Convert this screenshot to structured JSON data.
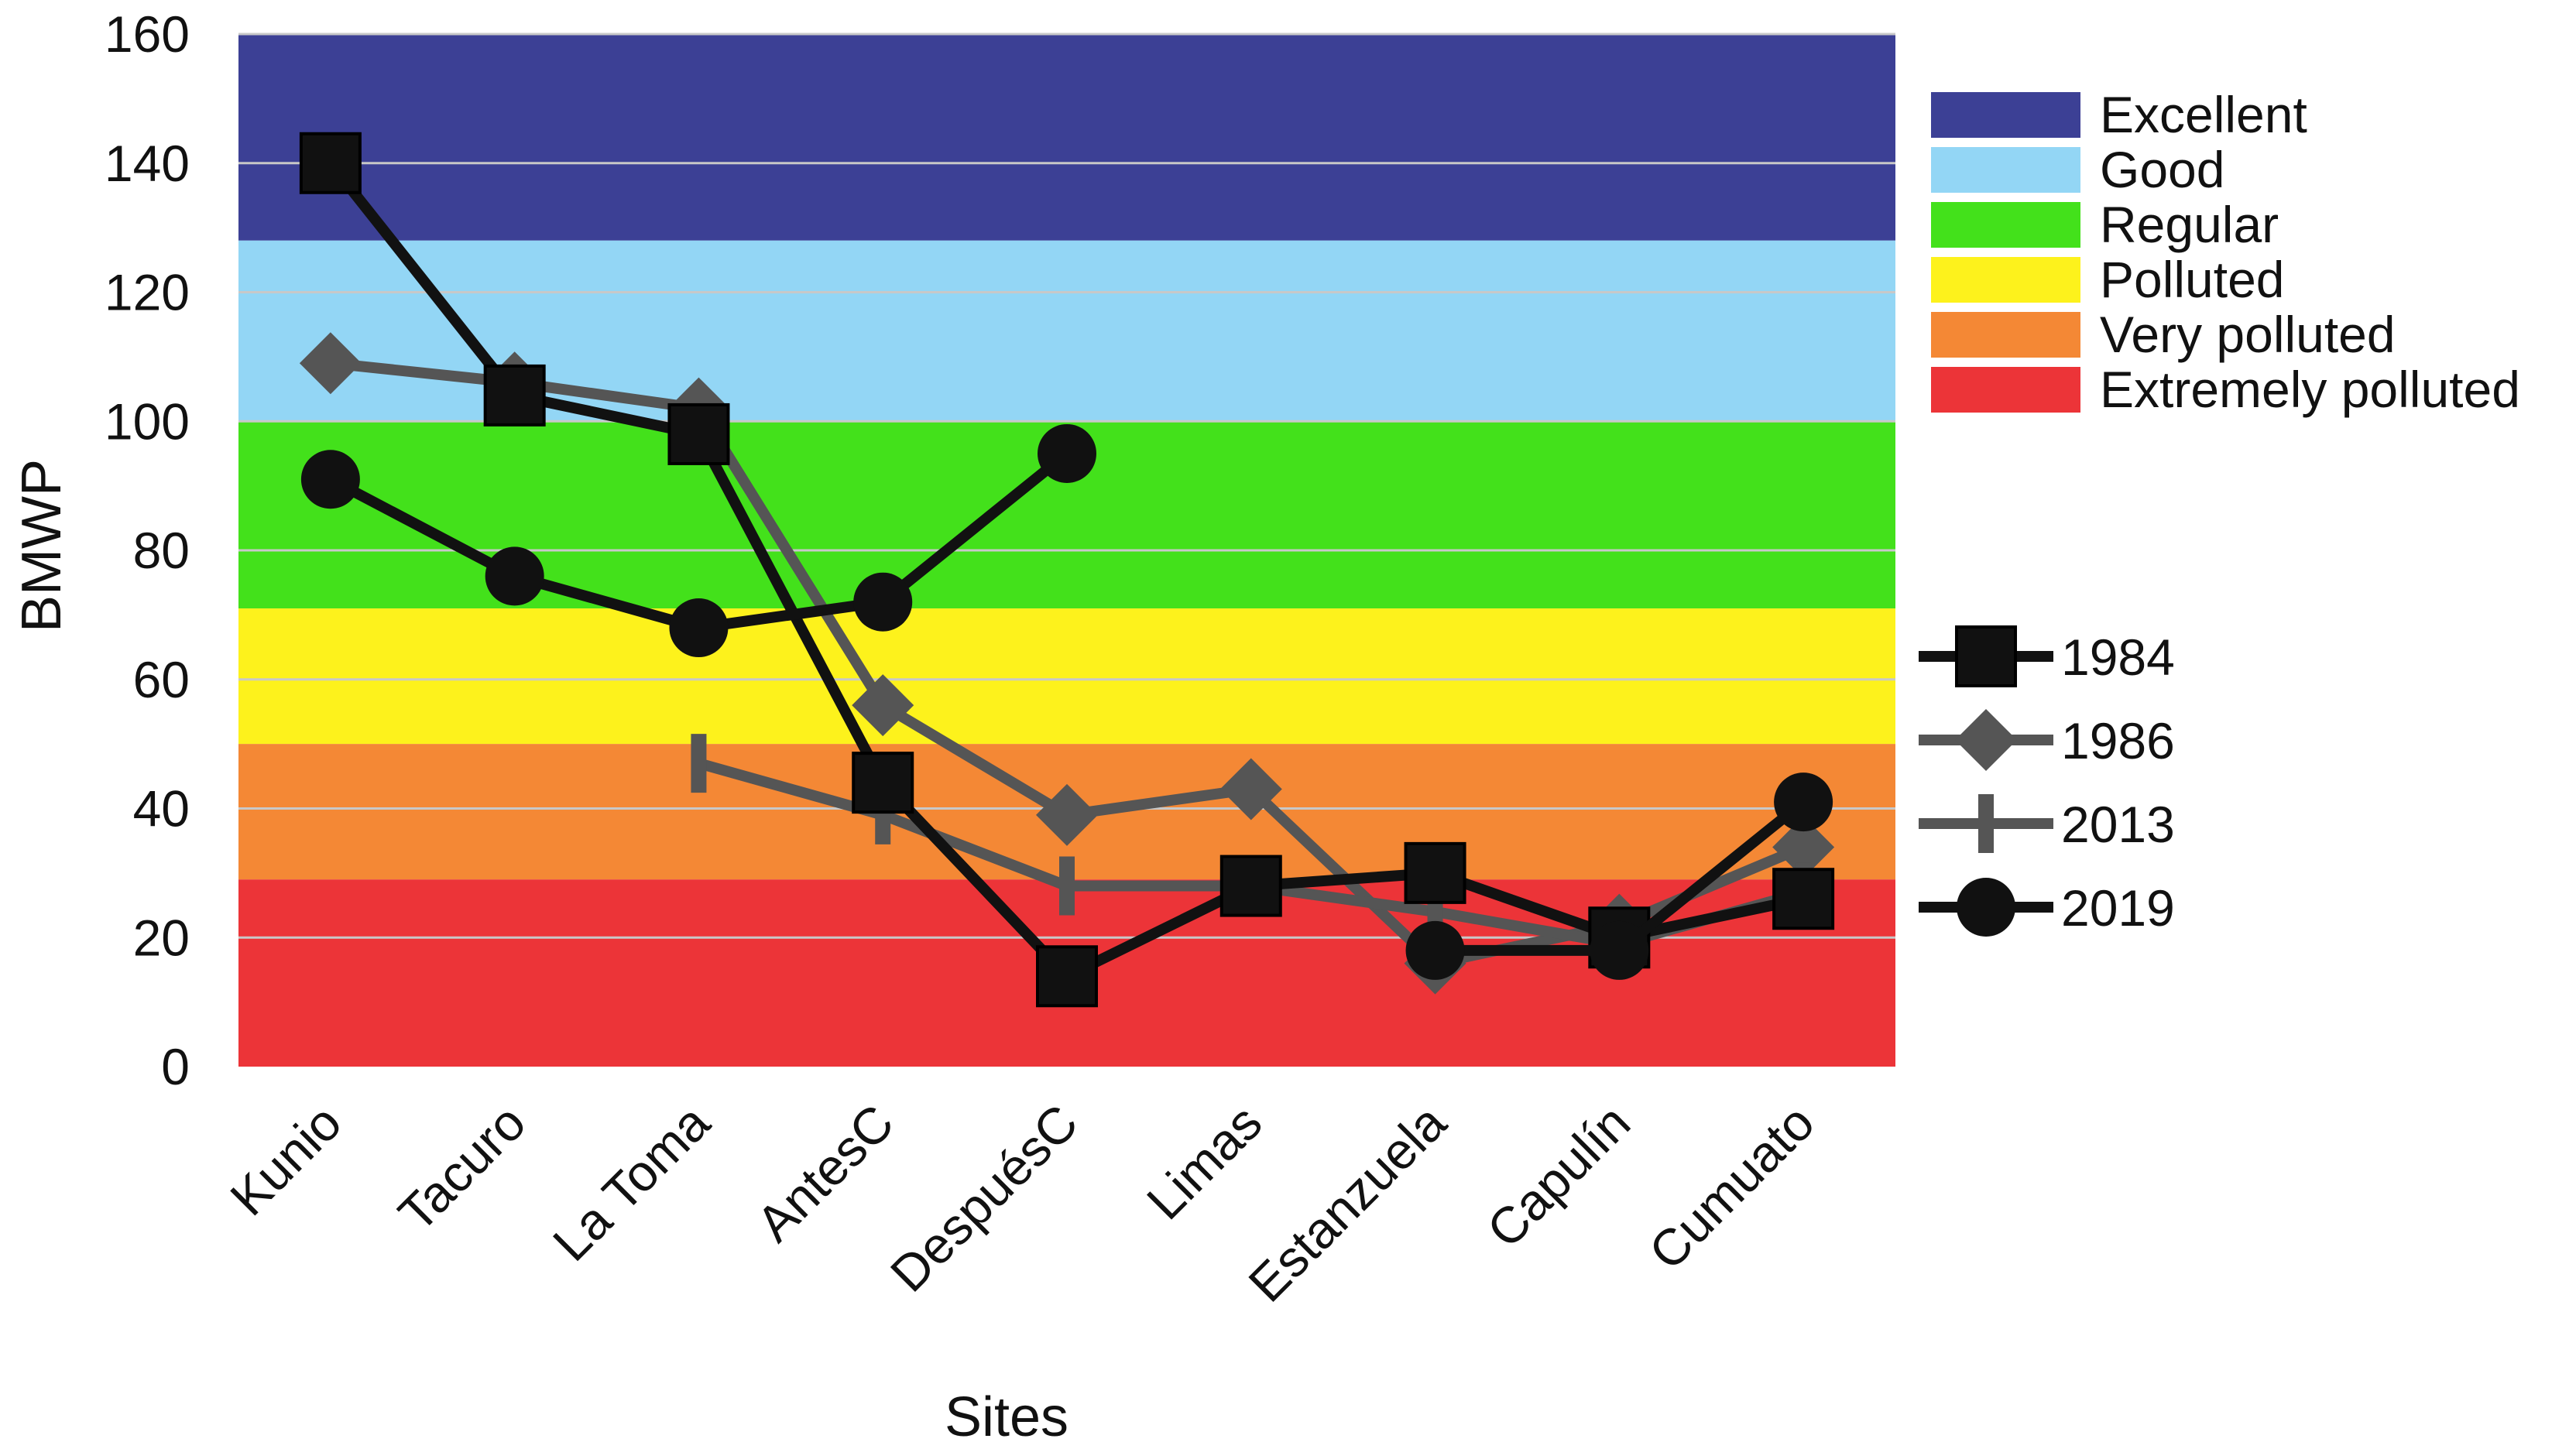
{
  "chart_data": {
    "type": "line",
    "title": "",
    "xlabel": "Sites",
    "ylabel": "BMWP",
    "ylim": [
      0,
      160
    ],
    "yticks": [
      0,
      20,
      40,
      60,
      80,
      100,
      120,
      140,
      160
    ],
    "grid": true,
    "categories": [
      "Kunio",
      "Tacuro",
      "La Toma",
      "AntesC",
      "DespuésC",
      "Limas",
      "Estanzuela",
      "Capulín",
      "Cumuato"
    ],
    "bands": [
      {
        "label": "Excellent",
        "from": 128,
        "to": 160,
        "color": "#3c4095"
      },
      {
        "label": "Good",
        "from": 100,
        "to": 128,
        "color": "#93d6f5"
      },
      {
        "label": "Regular",
        "from": 71,
        "to": 100,
        "color": "#43e11b"
      },
      {
        "label": "Polluted",
        "from": 50,
        "to": 71,
        "color": "#fdf21c"
      },
      {
        "label": "Very polluted",
        "from": 29,
        "to": 50,
        "color": "#f48835"
      },
      {
        "label": "Extremely polluted",
        "from": 0,
        "to": 29,
        "color": "#ec3438"
      }
    ],
    "series": [
      {
        "name": "1984",
        "marker": "square",
        "color": "#111111",
        "values": [
          140,
          104,
          98,
          44,
          14,
          28,
          30,
          20,
          26
        ]
      },
      {
        "name": "1986",
        "marker": "diamond",
        "color": "#555555",
        "values": [
          109,
          106,
          102,
          56,
          39,
          43,
          16,
          22,
          34
        ]
      },
      {
        "name": "2013",
        "marker": "plus",
        "color": "#555555",
        "values": [
          null,
          null,
          47,
          39,
          28,
          28,
          24,
          19,
          27
        ]
      },
      {
        "name": "2019",
        "marker": "circle",
        "color": "#111111",
        "values": [
          91,
          76,
          68,
          72,
          95,
          null,
          18,
          18,
          41
        ]
      }
    ]
  }
}
